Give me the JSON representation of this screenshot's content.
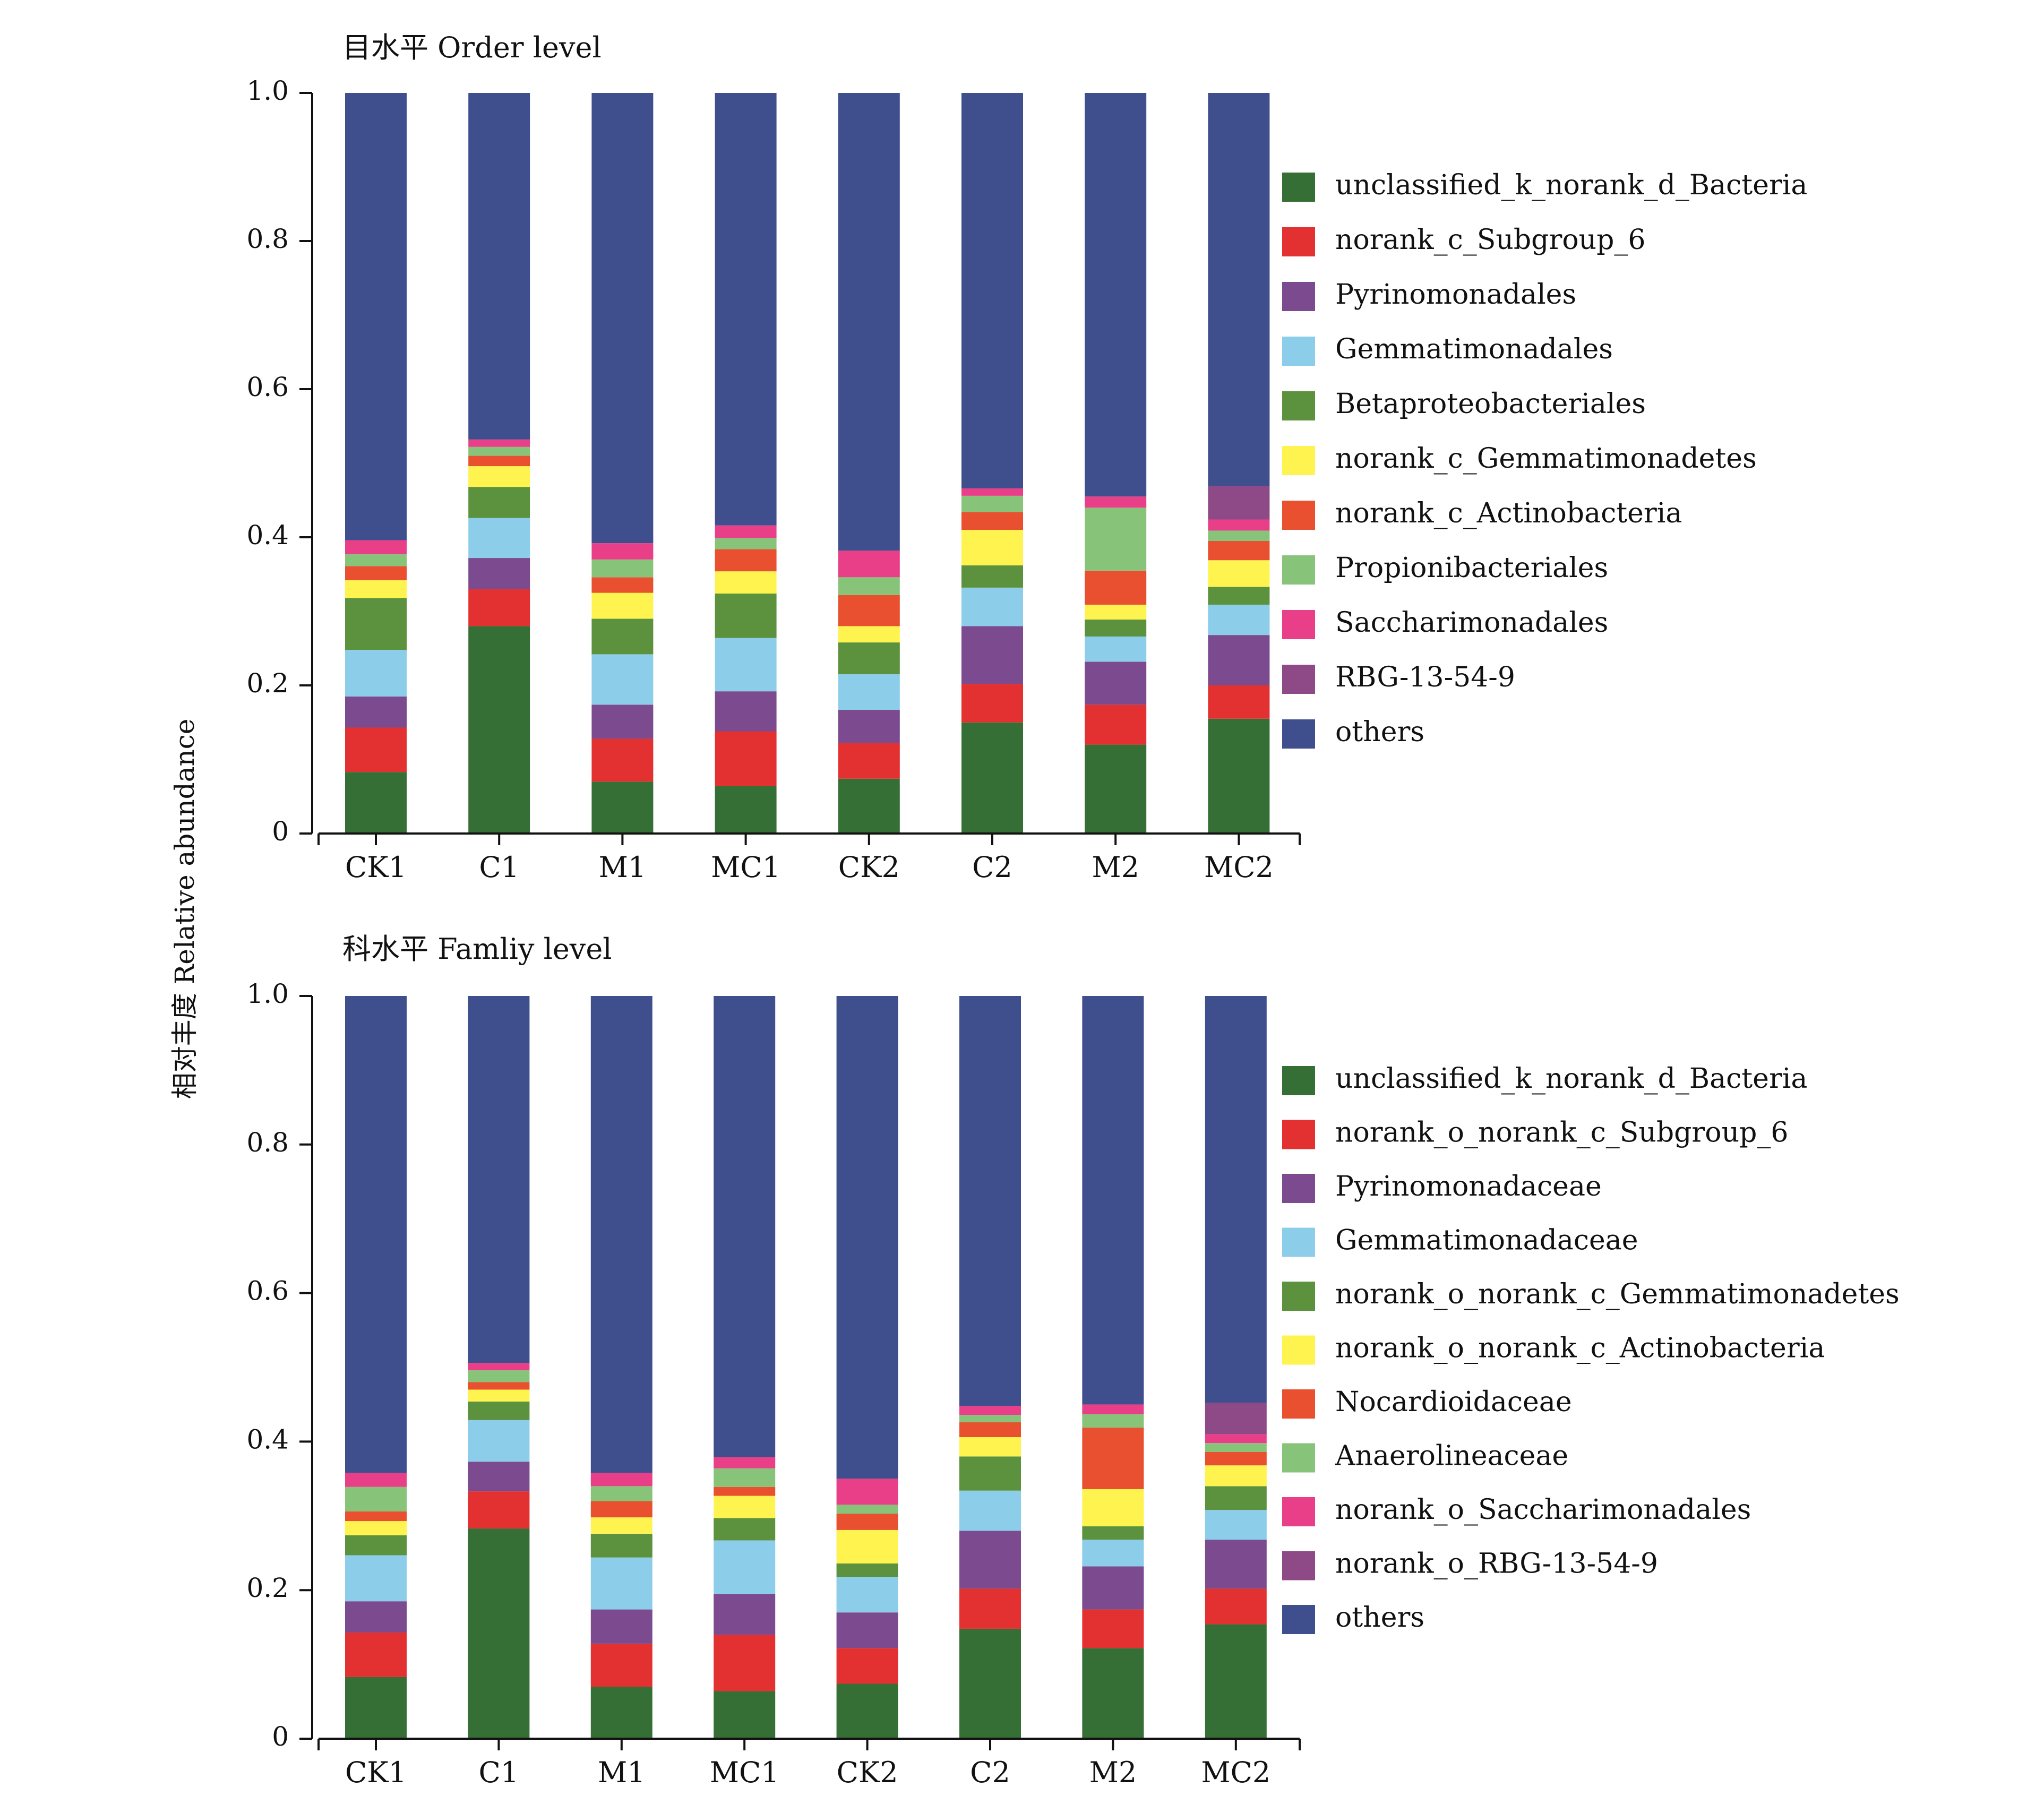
{
  "y_axis_shared_label": "相对丰度 Relative abundance",
  "colors": {
    "unclassified": "#356f35",
    "subgroup6": "#e33030",
    "pyrino": "#7b4a8f",
    "gemmatimonad": "#8ccdea",
    "betaproteo": "#5c913d",
    "gemm_c": "#fff44f",
    "actino": "#e8502f",
    "propioni": "#88c37a",
    "saccharim": "#e83f88",
    "rbg": "#8e4a86",
    "others": "#3f4f8e"
  },
  "chart_data": [
    {
      "type": "bar",
      "stacked": true,
      "title": "目水平 Order level",
      "ylim": [
        0,
        1.0
      ],
      "yticks": [
        "0",
        "0.2",
        "0.4",
        "0.6",
        "0.8",
        "1.0"
      ],
      "legend_placement": "right",
      "categories": [
        "CK1",
        "C1",
        "M1",
        "MC1",
        "CK2",
        "C2",
        "M2",
        "MC2"
      ],
      "series": [
        {
          "name": "unclassified_k_norank_d_Bacteria",
          "color": "#356f35",
          "values": [
            0.083,
            0.28,
            0.07,
            0.064,
            0.074,
            0.15,
            0.12,
            0.155
          ]
        },
        {
          "name": "norank_c_Subgroup_6",
          "color": "#e33030",
          "values": [
            0.06,
            0.05,
            0.058,
            0.074,
            0.048,
            0.052,
            0.054,
            0.045
          ]
        },
        {
          "name": "Pyrinomonadales",
          "color": "#7b4a8f",
          "values": [
            0.042,
            0.042,
            0.046,
            0.054,
            0.045,
            0.078,
            0.058,
            0.068
          ]
        },
        {
          "name": "Gemmatimonadales",
          "color": "#8ccdea",
          "values": [
            0.063,
            0.054,
            0.068,
            0.072,
            0.048,
            0.052,
            0.034,
            0.041
          ]
        },
        {
          "name": "Betaproteobacteriales",
          "color": "#5c913d",
          "values": [
            0.07,
            0.042,
            0.048,
            0.06,
            0.043,
            0.03,
            0.023,
            0.024
          ]
        },
        {
          "name": "norank_c_Gemmatimonadetes",
          "color": "#fff44f",
          "values": [
            0.024,
            0.028,
            0.035,
            0.03,
            0.022,
            0.048,
            0.02,
            0.036
          ]
        },
        {
          "name": "norank_c_Actinobacteria",
          "color": "#e8502f",
          "values": [
            0.019,
            0.014,
            0.021,
            0.03,
            0.042,
            0.024,
            0.046,
            0.026
          ]
        },
        {
          "name": "Propionibacteriales",
          "color": "#88c37a",
          "values": [
            0.016,
            0.012,
            0.024,
            0.015,
            0.024,
            0.022,
            0.085,
            0.014
          ]
        },
        {
          "name": "Saccharimonadales",
          "color": "#e83f88",
          "values": [
            0.019,
            0.01,
            0.022,
            0.017,
            0.036,
            0.01,
            0.015,
            0.015
          ]
        },
        {
          "name": "RBG-13-54-9",
          "color": "#8e4a86",
          "values": [
            0.0,
            0.0,
            0.0,
            0.0,
            0.0,
            0.0,
            0.0,
            0.045
          ]
        },
        {
          "name": "others",
          "color": "#3f4f8e",
          "values": [
            0.604,
            0.468,
            0.608,
            0.584,
            0.618,
            0.534,
            0.545,
            0.531
          ]
        }
      ]
    },
    {
      "type": "bar",
      "stacked": true,
      "title": "科水平 Famliy level",
      "ylim": [
        0,
        1.0
      ],
      "yticks": [
        "0",
        "0.2",
        "0.4",
        "0.6",
        "0.8",
        "1.0"
      ],
      "legend_placement": "right",
      "categories": [
        "CK1",
        "C1",
        "M1",
        "MC1",
        "CK2",
        "C2",
        "M2",
        "MC2"
      ],
      "series": [
        {
          "name": "unclassified_k_norank_d_Bacteria",
          "color": "#356f35",
          "values": [
            0.083,
            0.283,
            0.07,
            0.064,
            0.074,
            0.148,
            0.122,
            0.154
          ]
        },
        {
          "name": "norank_o_norank_c_Subgroup_6",
          "color": "#e33030",
          "values": [
            0.06,
            0.05,
            0.058,
            0.076,
            0.048,
            0.054,
            0.052,
            0.048
          ]
        },
        {
          "name": "Pyrinomonadaceae",
          "color": "#7b4a8f",
          "values": [
            0.042,
            0.04,
            0.046,
            0.055,
            0.048,
            0.078,
            0.058,
            0.066
          ]
        },
        {
          "name": "Gemmatimonadaceae",
          "color": "#8ccdea",
          "values": [
            0.062,
            0.056,
            0.07,
            0.072,
            0.048,
            0.054,
            0.036,
            0.04
          ]
        },
        {
          "name": "norank_o_norank_c_Gemmatimonadetes",
          "color": "#5c913d",
          "values": [
            0.027,
            0.025,
            0.032,
            0.03,
            0.018,
            0.046,
            0.018,
            0.032
          ]
        },
        {
          "name": "norank_o_norank_c_Actinobacteria",
          "color": "#fff44f",
          "values": [
            0.019,
            0.016,
            0.022,
            0.03,
            0.045,
            0.026,
            0.05,
            0.028
          ]
        },
        {
          "name": "Nocardioidaceae",
          "color": "#e8502f",
          "values": [
            0.013,
            0.01,
            0.022,
            0.012,
            0.022,
            0.02,
            0.083,
            0.018
          ]
        },
        {
          "name": "Anaerolineaceae",
          "color": "#88c37a",
          "values": [
            0.033,
            0.016,
            0.02,
            0.025,
            0.012,
            0.01,
            0.018,
            0.012
          ]
        },
        {
          "name": "norank_o_Saccharimonadales",
          "color": "#e83f88",
          "values": [
            0.019,
            0.01,
            0.018,
            0.015,
            0.035,
            0.012,
            0.013,
            0.012
          ]
        },
        {
          "name": "norank_o_RBG-13-54-9",
          "color": "#8e4a86",
          "values": [
            0.0,
            0.0,
            0.0,
            0.0,
            0.0,
            0.0,
            0.0,
            0.042
          ]
        },
        {
          "name": "others",
          "color": "#3f4f8e",
          "values": [
            0.642,
            0.494,
            0.642,
            0.621,
            0.65,
            0.552,
            0.55,
            0.548
          ]
        }
      ]
    }
  ]
}
